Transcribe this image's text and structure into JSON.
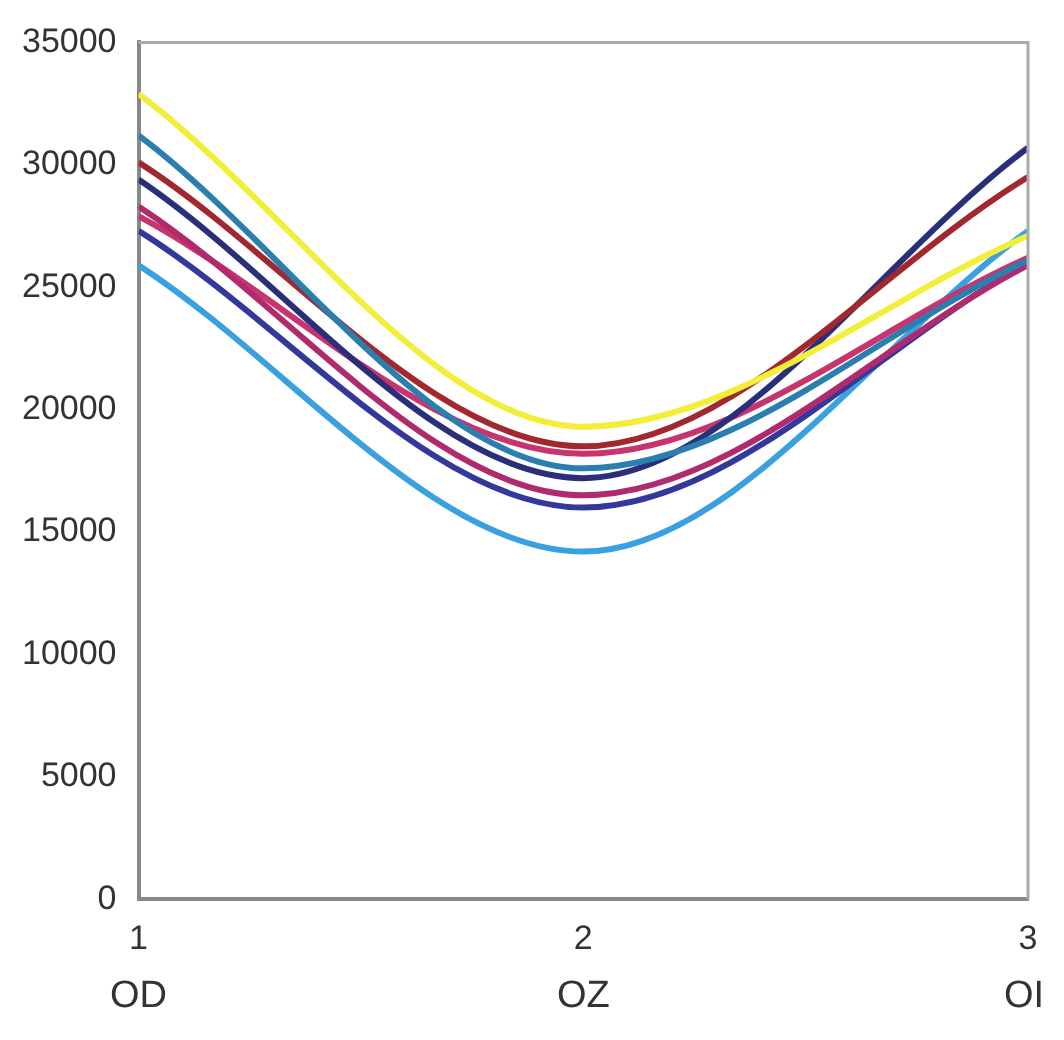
{
  "chart_data": {
    "type": "line",
    "x": [
      1,
      2,
      3
    ],
    "series": [
      {
        "color": "#f2ee3a",
        "values": [
          32900,
          19300,
          27100
        ]
      },
      {
        "color": "#2b7fae",
        "values": [
          31200,
          17600,
          26100
        ]
      },
      {
        "color": "#a0282e",
        "values": [
          30100,
          18500,
          29500
        ]
      },
      {
        "color": "#2a2f7a",
        "values": [
          29400,
          17200,
          30700
        ]
      },
      {
        "color": "#b02a6e",
        "values": [
          28300,
          16500,
          25900
        ]
      },
      {
        "color": "#c8346e",
        "values": [
          27900,
          18200,
          26200
        ]
      },
      {
        "color": "#33399a",
        "values": [
          27300,
          16000,
          26000
        ]
      },
      {
        "color": "#3aa0e0",
        "values": [
          25900,
          14200,
          27300
        ]
      }
    ],
    "xlim": [
      1,
      3
    ],
    "xticks": [
      1,
      2,
      3
    ],
    "annotations": [
      "OD",
      "OZ",
      "OI"
    ],
    "ylim": [
      0,
      35000
    ],
    "yticks": [
      0,
      5000,
      10000,
      15000,
      20000,
      25000,
      30000,
      35000
    ],
    "grid": false,
    "legend": false,
    "marker": "none",
    "line_style": "solid"
  }
}
